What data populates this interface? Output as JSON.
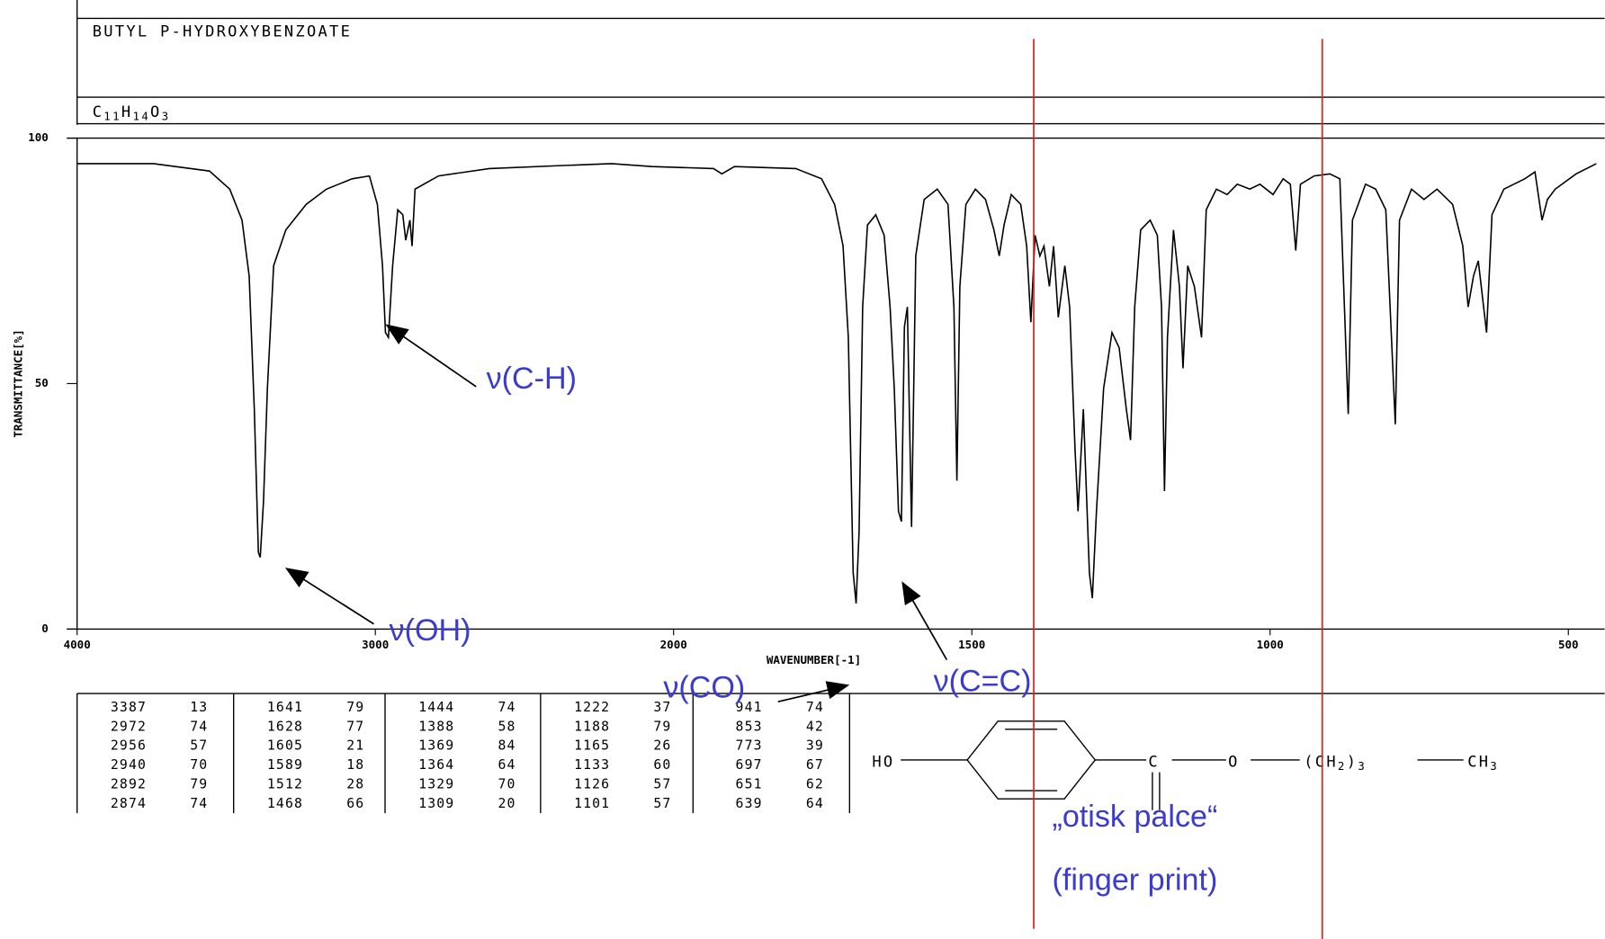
{
  "compound": {
    "name": "BUTYL P-HYDROXYBENZOATE",
    "formula": [
      "C",
      "11",
      "H",
      "14",
      "O",
      "3"
    ]
  },
  "chart_data": {
    "type": "line",
    "x_label": "WAVENUMBER[-1]",
    "y_label": "TRANSMITTANCE[%]",
    "xlim": [
      4000,
      450
    ],
    "x_scale_change": 2000,
    "ylim": [
      0,
      100
    ],
    "xticks": [
      4000,
      3000,
      2000,
      1500,
      1000,
      500
    ],
    "yticks": [
      0,
      50,
      100
    ],
    "grid": false,
    "color": "#000000",
    "x": [
      4000,
      3744,
      3556,
      3488,
      3447,
      3423,
      3406,
      3392,
      3386,
      3375,
      3362,
      3341,
      3300,
      3232,
      3164,
      3078,
      3020,
      2993,
      2976,
      2966,
      2956,
      2942,
      2925,
      2908,
      2898,
      2884,
      2877,
      2867,
      2788,
      2618,
      2379,
      2208,
      2072,
      1933,
      1919,
      1898,
      1795,
      1752,
      1730,
      1716,
      1707,
      1699,
      1694,
      1689,
      1683,
      1675,
      1661,
      1647,
      1637,
      1630,
      1623,
      1618,
      1613,
      1608,
      1601,
      1594,
      1580,
      1558,
      1540,
      1530,
      1525,
      1520,
      1510,
      1494,
      1477,
      1463,
      1454,
      1446,
      1434,
      1418,
      1408,
      1401,
      1394,
      1386,
      1379,
      1370,
      1363,
      1355,
      1344,
      1336,
      1327,
      1322,
      1313,
      1303,
      1298,
      1291,
      1279,
      1265,
      1253,
      1241,
      1234,
      1227,
      1217,
      1201,
      1189,
      1182,
      1177,
      1172,
      1162,
      1152,
      1146,
      1138,
      1127,
      1115,
      1107,
      1090,
      1072,
      1055,
      1034,
      1017,
      995,
      978,
      966,
      957,
      949,
      926,
      900,
      883,
      869,
      862,
      840,
      823,
      806,
      790,
      783,
      763,
      742,
      720,
      694,
      677,
      668,
      659,
      651,
      637,
      628,
      608,
      573,
      556,
      544,
      535,
      522,
      487,
      453
    ],
    "values": [
      94.8,
      94.8,
      93.3,
      89.6,
      83.3,
      71.9,
      44.8,
      15.6,
      14.6,
      26,
      49,
      74,
      81.3,
      86.5,
      89.6,
      91.7,
      92.3,
      86.5,
      74,
      60.4,
      59.4,
      74,
      85.4,
      84.4,
      79.2,
      83.3,
      78,
      89.6,
      92.3,
      93.8,
      94.4,
      94.8,
      94.2,
      93.8,
      92.7,
      94.2,
      93.8,
      91.7,
      86.5,
      78.1,
      59.4,
      11.5,
      5.2,
      19.8,
      65.6,
      82.3,
      84.4,
      80.2,
      65.6,
      49,
      24,
      21.9,
      61.5,
      65.6,
      20.8,
      76,
      87.5,
      89.6,
      86.5,
      65.6,
      30.2,
      69.8,
      86.5,
      89.6,
      87.5,
      81.3,
      76,
      82.3,
      88.5,
      86.5,
      78,
      62.5,
      80.2,
      76,
      78,
      69.8,
      78,
      63.5,
      74,
      65.6,
      36.5,
      24,
      44.8,
      11.5,
      6.3,
      24,
      49,
      60.4,
      57.3,
      44.8,
      38.5,
      65.6,
      81.3,
      83.3,
      80.2,
      65.6,
      28.1,
      59.4,
      81.3,
      69.8,
      53.1,
      74,
      69.8,
      59.4,
      85.4,
      89.6,
      88.5,
      90.6,
      89.6,
      90.6,
      88.5,
      91.7,
      90.6,
      77.1,
      90.6,
      92.3,
      92.7,
      91.7,
      43.8,
      83.3,
      90.6,
      89.6,
      85.4,
      41.7,
      83.3,
      89.6,
      87.5,
      89.6,
      86.5,
      78.1,
      65.6,
      71.9,
      75,
      60.4,
      84.4,
      89.6,
      91.7,
      93.1,
      83.3,
      87.5,
      89.6,
      92.7,
      94.8
    ]
  },
  "peak_table": [
    [
      3387,
      13,
      1641,
      79,
      1444,
      74,
      1222,
      37,
      941,
      74
    ],
    [
      2972,
      74,
      1628,
      77,
      1388,
      58,
      1188,
      79,
      853,
      42
    ],
    [
      2956,
      57,
      1605,
      21,
      1369,
      84,
      1165,
      26,
      773,
      39
    ],
    [
      2940,
      70,
      1589,
      18,
      1364,
      64,
      1133,
      60,
      697,
      67
    ],
    [
      2892,
      79,
      1512,
      28,
      1329,
      70,
      1126,
      57,
      651,
      62
    ],
    [
      2874,
      74,
      1468,
      66,
      1309,
      20,
      1101,
      57,
      639,
      64
    ]
  ],
  "structure": {
    "hydroxyl": "HO",
    "carbon": "C",
    "oxygen": "O",
    "chain": [
      "(CH",
      "2",
      ")",
      "3"
    ],
    "methyl": [
      "CH",
      "3"
    ]
  },
  "annotations": {
    "ch": "ν(C-H)",
    "oh": "ν(OH)",
    "co": "ν(CO)",
    "cc": "ν(C=C)",
    "fingerprint": "„otisk palce“",
    "fingerprint_en": "(finger print)"
  }
}
